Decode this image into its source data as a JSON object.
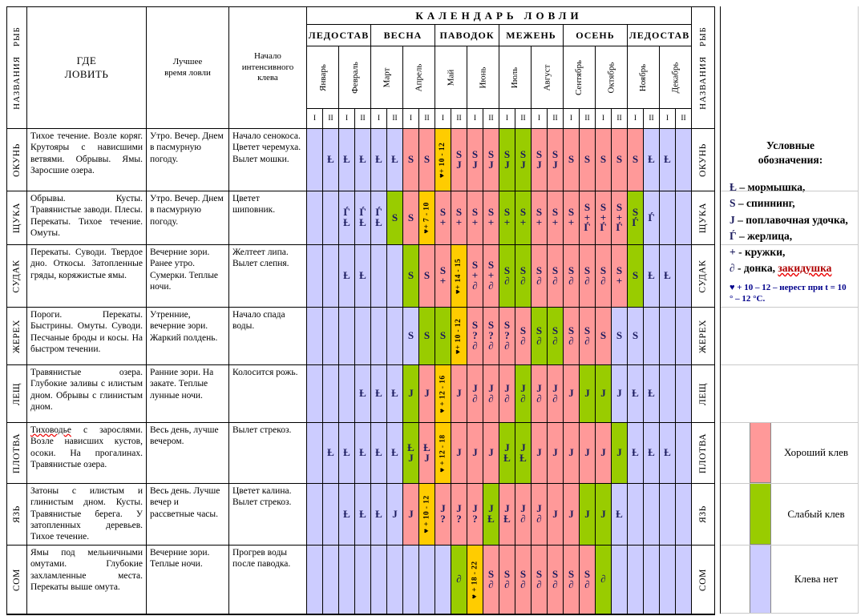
{
  "title": "КАЛЕНДАРЬ ЛОВЛИ",
  "headers": {
    "fish": "НАЗВАНИЯ РЫБ",
    "where": "ГДЕ ЛОВИТЬ",
    "time": "Лучшее время ловли",
    "start": "Начало интенсивного клева"
  },
  "seasons": [
    "ЛЕДОСТАВ",
    "ВЕСНА",
    "ПАВОДОК",
    "МЕЖЕНЬ",
    "ОСЕНЬ",
    "ЛЕДОСТАВ"
  ],
  "months": [
    "Январь",
    "Февраль",
    "Март",
    "Апрель",
    "Май",
    "Июнь",
    "Июль",
    "Август",
    "Сентябрь",
    "Октябрь",
    "Ноябрь",
    "Декабрь"
  ],
  "halves": [
    "I",
    "II"
  ],
  "colors": {
    "good": "#ff9999",
    "weak": "#99cc00",
    "none": "#ccccff",
    "spawn": "#ffcc00",
    "symbol": "#1b1b5e"
  },
  "rows": [
    {
      "fish": "ОКУНЬ",
      "where": "Тихое течение. Возле коряг. Крутояры с нависшими ветвями. Обрывы. Ямы. Заросшие озера.",
      "time": "Утро. Вечер. Днем в пасмурную погоду.",
      "start": "Начало сенокоса. Цветет черемуха. Вылет мошки.",
      "cells": [
        [
          "n"
        ],
        [
          "n",
          "Ƚ"
        ],
        [
          "n",
          "Ƚ"
        ],
        [
          "n",
          "Ƚ"
        ],
        [
          "n",
          "Ƚ"
        ],
        [
          "n",
          "Ƚ"
        ],
        [
          "g",
          "S"
        ],
        [
          "g",
          "S"
        ],
        [
          "s",
          "♥+ 10 - 12"
        ],
        [
          "g",
          "S",
          "J"
        ],
        [
          "g",
          "S",
          "J"
        ],
        [
          "g",
          "S",
          "J"
        ],
        [
          "w",
          "S",
          "J"
        ],
        [
          "w",
          "S",
          "J"
        ],
        [
          "g",
          "S",
          "J"
        ],
        [
          "g",
          "S",
          "J"
        ],
        [
          "g",
          "S"
        ],
        [
          "g",
          "S"
        ],
        [
          "g",
          "S"
        ],
        [
          "g",
          "S"
        ],
        [
          "g",
          "S"
        ],
        [
          "n",
          "Ƚ"
        ],
        [
          "n",
          "Ƚ"
        ],
        [
          "n"
        ]
      ]
    },
    {
      "fish": "ЩУКА",
      "where": "Обрывы. Кусты. Травянистые заводи. Плесы. Перекаты. Тихое течение. Омуты.",
      "time": "Утро. Вечер. Днем в пасмурную погоду.",
      "start": "Цветет шиповник.",
      "cells": [
        [
          "n"
        ],
        [
          "n"
        ],
        [
          "n",
          "Ѓ",
          "Ƚ"
        ],
        [
          "n",
          "Ѓ",
          "Ƚ"
        ],
        [
          "n",
          "Ѓ",
          "Ƚ"
        ],
        [
          "w",
          "S"
        ],
        [
          "g",
          "S"
        ],
        [
          "s",
          "♥+ 7 - 10"
        ],
        [
          "g",
          "S",
          "+"
        ],
        [
          "g",
          "S",
          "+"
        ],
        [
          "g",
          "S",
          "+"
        ],
        [
          "g",
          "S",
          "+"
        ],
        [
          "w",
          "S",
          "+"
        ],
        [
          "w",
          "S",
          "+"
        ],
        [
          "g",
          "S",
          "+"
        ],
        [
          "g",
          "S",
          "+"
        ],
        [
          "g",
          "S",
          "+"
        ],
        [
          "g",
          "S",
          "+",
          "Ѓ"
        ],
        [
          "g",
          "S",
          "+",
          "Ѓ"
        ],
        [
          "g",
          "S",
          "+",
          "Ѓ"
        ],
        [
          "w",
          "S",
          "Ѓ"
        ],
        [
          "n",
          "Ѓ"
        ],
        [
          "n"
        ],
        [
          "n"
        ]
      ]
    },
    {
      "fish": "СУДАК",
      "where": "Перекаты. Суводи. Твердое дно. Откосы. Затопленные гряды, коряжистые ямы.",
      "time": "Вечерние зори. Ранее утро. Сумерки. Теплые ночи.",
      "start": "Желтеет липа. Вылет слепня.",
      "cells": [
        [
          "n"
        ],
        [
          "n"
        ],
        [
          "n",
          "Ƚ"
        ],
        [
          "n",
          "Ƚ"
        ],
        [
          "n"
        ],
        [
          "n"
        ],
        [
          "w",
          "S"
        ],
        [
          "g",
          "S"
        ],
        [
          "g",
          "S",
          "+"
        ],
        [
          "s",
          "♥+ 14 - 15"
        ],
        [
          "g",
          "S",
          "+",
          "∂"
        ],
        [
          "g",
          "S",
          "+",
          "∂"
        ],
        [
          "w",
          "S",
          "∂"
        ],
        [
          "w",
          "S",
          "∂"
        ],
        [
          "g",
          "S",
          "∂"
        ],
        [
          "g",
          "S",
          "∂"
        ],
        [
          "g",
          "S",
          "∂"
        ],
        [
          "g",
          "S",
          "∂"
        ],
        [
          "g",
          "S",
          "∂"
        ],
        [
          "g",
          "S",
          "+"
        ],
        [
          "w",
          "S"
        ],
        [
          "n",
          "Ƚ"
        ],
        [
          "n",
          "Ƚ"
        ],
        [
          "n"
        ]
      ]
    },
    {
      "fish": "ЖЕРЕХ",
      "where": "Пороги. Перекаты. Быстрины. Омуты. Суводи. Песчаные броды и косы. На быстром течении.",
      "time": "Утренние, вечерние зори. Жаркий полдень.",
      "start": "Начало спада воды.",
      "cells": [
        [
          "n"
        ],
        [
          "n"
        ],
        [
          "n"
        ],
        [
          "n"
        ],
        [
          "n"
        ],
        [
          "n"
        ],
        [
          "n",
          "S"
        ],
        [
          "w",
          "S"
        ],
        [
          "w",
          "S"
        ],
        [
          "s",
          "♥+ 10 - 12"
        ],
        [
          "g",
          "S",
          "?",
          "∂"
        ],
        [
          "g",
          "S",
          "?",
          "∂"
        ],
        [
          "g",
          "S",
          "?",
          "∂"
        ],
        [
          "g",
          "S",
          "∂"
        ],
        [
          "w",
          "S",
          "∂"
        ],
        [
          "w",
          "S",
          "∂"
        ],
        [
          "g",
          "S",
          "∂"
        ],
        [
          "g",
          "S",
          "∂"
        ],
        [
          "g",
          "S"
        ],
        [
          "n",
          "S"
        ],
        [
          "n",
          "S"
        ],
        [
          "n"
        ],
        [
          "n"
        ],
        [
          "n"
        ]
      ]
    },
    {
      "fish": "ЛЕЩ",
      "where": "Травянистые озера. Глубокие заливы с илистым дном. Обрывы с глинистым дном.",
      "time": "Ранние зори. На закате. Теплые лунные ночи.",
      "start": "Колосится рожь.",
      "cells": [
        [
          "n"
        ],
        [
          "n"
        ],
        [
          "n"
        ],
        [
          "n",
          "Ƚ"
        ],
        [
          "n",
          "Ƚ"
        ],
        [
          "n",
          "Ƚ"
        ],
        [
          "w",
          "J"
        ],
        [
          "g",
          "J"
        ],
        [
          "s",
          "♥ + 12 - 16"
        ],
        [
          "g",
          "J"
        ],
        [
          "g",
          "J",
          "∂"
        ],
        [
          "g",
          "J",
          "∂"
        ],
        [
          "g",
          "J",
          "∂"
        ],
        [
          "w",
          "J",
          "∂"
        ],
        [
          "g",
          "J",
          "∂"
        ],
        [
          "g",
          "J",
          "∂"
        ],
        [
          "g",
          "J"
        ],
        [
          "w",
          "J"
        ],
        [
          "w",
          "J"
        ],
        [
          "n",
          "J"
        ],
        [
          "n",
          "Ƚ"
        ],
        [
          "n",
          "Ƚ"
        ],
        [
          "n"
        ],
        [
          "n"
        ]
      ]
    },
    {
      "fish": "ПЛОТВА",
      "where": "Тиховодье с зарослями. Возле нависших кустов, осоки. На прогалинах. Травянистые озера.",
      "wavy_word": "Тиховодье",
      "time": "Весь день, лучше вечером.",
      "start": "Вылет стрекоз.",
      "cells": [
        [
          "n"
        ],
        [
          "n",
          "Ƚ"
        ],
        [
          "n",
          "Ƚ"
        ],
        [
          "n",
          "Ƚ"
        ],
        [
          "n",
          "Ƚ"
        ],
        [
          "n",
          "Ƚ"
        ],
        [
          "w",
          "Ƚ",
          "J"
        ],
        [
          "g",
          "Ƚ",
          "J"
        ],
        [
          "s",
          "♥ + 12 - 18"
        ],
        [
          "g",
          "J"
        ],
        [
          "g",
          "J"
        ],
        [
          "g",
          "J"
        ],
        [
          "w",
          "J",
          "Ƚ"
        ],
        [
          "w",
          "J",
          "Ƚ"
        ],
        [
          "g",
          "J"
        ],
        [
          "g",
          "J"
        ],
        [
          "g",
          "J"
        ],
        [
          "g",
          "J"
        ],
        [
          "g",
          "J"
        ],
        [
          "w",
          "J"
        ],
        [
          "n",
          "Ƚ"
        ],
        [
          "n",
          "Ƚ"
        ],
        [
          "n",
          "Ƚ"
        ],
        [
          "n"
        ]
      ]
    },
    {
      "fish": "ЯЗЬ",
      "where": "Затоны с илистым и глинистым дном. Кусты. Травянистые берега. У затопленных деревьев. Тихое течение.",
      "time": "Весь день. Лучше вечер и рассветные часы.",
      "start": "Цветет калина. Вылет стрекоз.",
      "cells": [
        [
          "n"
        ],
        [
          "n"
        ],
        [
          "n",
          "Ƚ"
        ],
        [
          "n",
          "Ƚ"
        ],
        [
          "n",
          "Ƚ"
        ],
        [
          "n",
          "J"
        ],
        [
          "g",
          "J"
        ],
        [
          "s",
          "♥ + 10 - 12"
        ],
        [
          "g",
          "J",
          "?"
        ],
        [
          "g",
          "J",
          "?"
        ],
        [
          "g",
          "J",
          "?"
        ],
        [
          "w",
          "J",
          "Ƚ"
        ],
        [
          "g",
          "J",
          "Ƚ"
        ],
        [
          "g",
          "J",
          "∂"
        ],
        [
          "g",
          "J",
          "∂"
        ],
        [
          "g",
          "J"
        ],
        [
          "g",
          "J"
        ],
        [
          "w",
          "J"
        ],
        [
          "w",
          "J"
        ],
        [
          "n",
          "Ƚ"
        ],
        [
          "n"
        ],
        [
          "n"
        ],
        [
          "n"
        ],
        [
          "n"
        ]
      ]
    },
    {
      "fish": "СОМ",
      "where": "Ямы под мельничными омутами. Глубокие захламленные места. Перекаты выше омута.",
      "time": "Вечерние зори. Теплые ночи.",
      "start": "Прогрев воды после паводка.",
      "cells": [
        [
          "n"
        ],
        [
          "n"
        ],
        [
          "n"
        ],
        [
          "n"
        ],
        [
          "n"
        ],
        [
          "n"
        ],
        [
          "n"
        ],
        [
          "n"
        ],
        [
          "n"
        ],
        [
          "w",
          "∂"
        ],
        [
          "s",
          "♥ + 18 - 22"
        ],
        [
          "g",
          "S",
          "∂"
        ],
        [
          "g",
          "S",
          "∂"
        ],
        [
          "g",
          "S",
          "∂"
        ],
        [
          "g",
          "S",
          "∂"
        ],
        [
          "g",
          "S",
          "∂"
        ],
        [
          "g",
          "S",
          "∂"
        ],
        [
          "g",
          "S",
          "∂"
        ],
        [
          "w",
          "∂"
        ],
        [
          "n"
        ],
        [
          "n"
        ],
        [
          "n"
        ],
        [
          "n"
        ],
        [
          "n"
        ]
      ]
    }
  ],
  "legend": {
    "title": "Условные обозначения:",
    "items": [
      {
        "sym": "Ƚ",
        "text": "– мормышка,"
      },
      {
        "sym": "S",
        "text": "– спиннинг,"
      },
      {
        "sym": "J",
        "text": "– поплавочная удочка,"
      },
      {
        "sym": "Ѓ",
        "text": "– жерлица,"
      },
      {
        "sym": "+",
        "text": "- кружки,"
      },
      {
        "sym": "∂",
        "text": "- донка,",
        "highlight": "закидушка"
      }
    ],
    "spawn_note": "♥ + 10 – 12 – нерест при t = 10 ° – 12 °С.",
    "quality": [
      {
        "label": "Хороший клев",
        "color": "#ff9999"
      },
      {
        "label": "Слабый клев",
        "color": "#99cc00"
      },
      {
        "label": "Клева нет",
        "color": "#ccccff"
      }
    ]
  }
}
